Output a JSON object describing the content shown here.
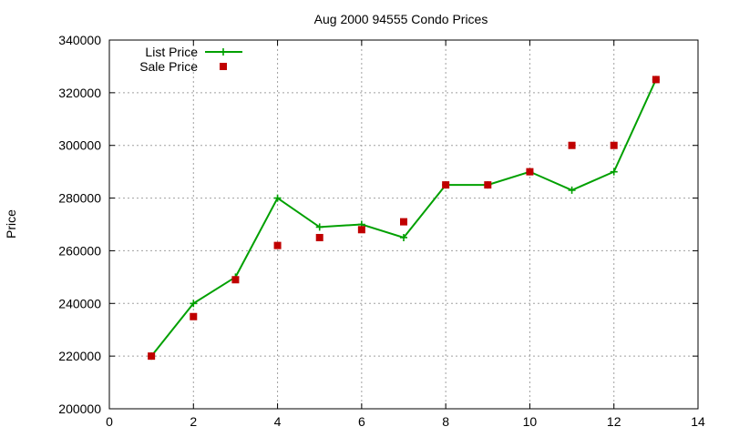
{
  "chart_data": {
    "type": "line",
    "title": "Aug 2000 94555 Condo Prices",
    "xlabel": "",
    "ylabel": "Price",
    "xlim": [
      0,
      14
    ],
    "ylim": [
      200000,
      340000
    ],
    "xticks": [
      0,
      2,
      4,
      6,
      8,
      10,
      12,
      14
    ],
    "yticks": [
      200000,
      220000,
      240000,
      260000,
      280000,
      300000,
      320000,
      340000
    ],
    "grid": true,
    "legend_position": "top-left",
    "series": [
      {
        "name": "List Price",
        "style": "line-with-plus",
        "color": "#00a000",
        "x": [
          1,
          2,
          3,
          4,
          5,
          6,
          7,
          8,
          9,
          10,
          11,
          12,
          13
        ],
        "y": [
          220000,
          240000,
          250000,
          280000,
          269000,
          270000,
          265000,
          285000,
          285000,
          290000,
          283000,
          290000,
          325000
        ]
      },
      {
        "name": "Sale Price",
        "style": "square-points",
        "color": "#c00000",
        "x": [
          1,
          2,
          3,
          4,
          5,
          6,
          7,
          8,
          9,
          10,
          11,
          12,
          13
        ],
        "y": [
          220000,
          235000,
          249000,
          262000,
          265000,
          268000,
          271000,
          285000,
          285000,
          290000,
          300000,
          300000,
          325000
        ]
      }
    ]
  }
}
